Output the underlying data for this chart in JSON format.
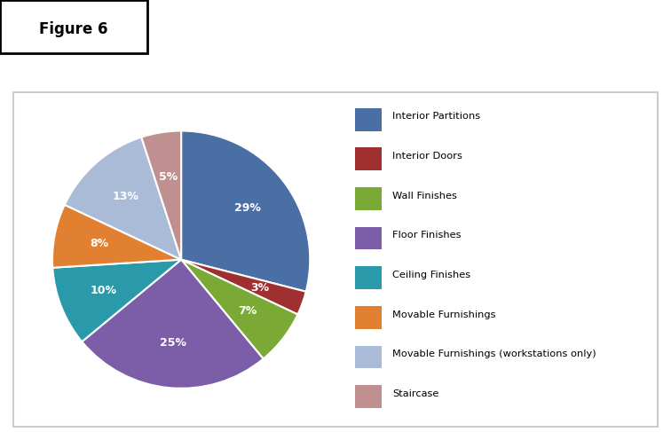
{
  "labels": [
    "Interior Partitions",
    "Interior Doors",
    "Wall Finishes",
    "Floor Finishes",
    "Ceiling Finishes",
    "Movable Furnishings",
    "Movable Furnishings (workstations only)",
    "Staircase"
  ],
  "values": [
    29,
    3,
    7,
    25,
    10,
    8,
    13,
    5
  ],
  "colors": [
    "#4a6fa5",
    "#a03030",
    "#7aaa35",
    "#7b5ea7",
    "#2a9aaa",
    "#e08030",
    "#aabbd8",
    "#c09090"
  ],
  "pct_labels": [
    "29%",
    "3%",
    "7%",
    "25%",
    "10%",
    "8%",
    "13%",
    "5%"
  ],
  "figure_label": "Figure 6",
  "gold_bar_color": "#d4a020",
  "border_color": "#cccccc",
  "background": "#ffffff",
  "startangle": 90,
  "text_color": "#ffffff",
  "fig_width": 7.56,
  "fig_height": 4.96
}
